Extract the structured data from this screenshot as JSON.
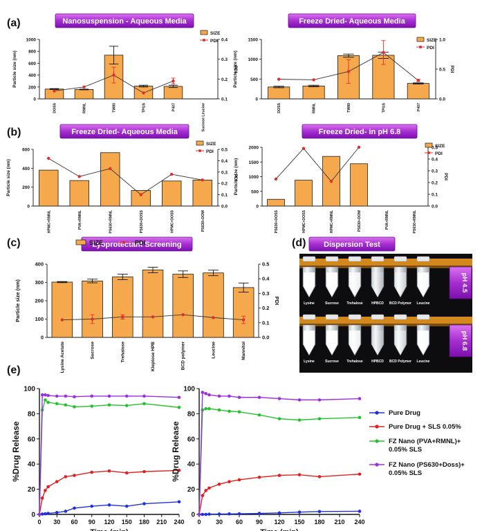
{
  "panel_labels": {
    "a": "(a)",
    "b": "(b)",
    "c": "(c)",
    "d": "(d)",
    "e": "(e)"
  },
  "legend": {
    "size": "SIZE",
    "pdi": "PDI"
  },
  "colors": {
    "bar": "#F6A94C",
    "bar_stroke": "#1a1a1a",
    "pdi": "#E32D2D",
    "banner_top": "#D35AE8",
    "banner_bottom": "#8D18B8",
    "pure_drug": "#1F2FE0",
    "pure_sls": "#E02020",
    "fz_pva": "#22C32A",
    "fz_ps630": "#9B2FE0"
  },
  "chart_data": [
    {
      "id": "a1",
      "type": "bar",
      "title": "Nanosuspension - Aqueous Media",
      "ylabel": "Particle size (nm)",
      "y2label": "PDI",
      "categories": [
        "DOSS",
        "RMNL",
        "TW80",
        "TPGS",
        "P407",
        "Sucrose Leucine"
      ],
      "size": [
        165,
        158,
        735,
        215,
        210,
        null
      ],
      "size_err": [
        8,
        6,
        150,
        15,
        20,
        null
      ],
      "pdi": [
        0.14,
        0.16,
        0.22,
        0.13,
        0.19,
        null
      ],
      "pdi_err": [
        0,
        0,
        0.04,
        0,
        0.015,
        null
      ],
      "ylim": [
        0,
        1000
      ],
      "yticks": [
        0,
        200,
        400,
        600,
        800,
        1000
      ],
      "y2lim": [
        0.1,
        0.4
      ],
      "y2ticks": [
        0.1,
        0.2,
        0.3,
        0.4
      ]
    },
    {
      "id": "a2",
      "type": "bar",
      "title": "Freeze Dried- Aqueous Media",
      "ylabel": "Particle size (nm)",
      "y2label": "PDI",
      "categories": [
        "DOSS",
        "RMNL",
        "TW80",
        "TPGS",
        "P407"
      ],
      "size": [
        300,
        325,
        1090,
        1100,
        390
      ],
      "size_err": [
        20,
        20,
        40,
        80,
        15
      ],
      "pdi": [
        0.33,
        0.32,
        0.46,
        0.78,
        0.31
      ],
      "pdi_err": [
        0,
        0,
        0.2,
        0.2,
        0.02
      ],
      "ylim": [
        0,
        1500
      ],
      "yticks": [
        0,
        500,
        1000,
        1500
      ],
      "y2lim": [
        0,
        1.0
      ],
      "y2ticks": [
        0.0,
        0.5,
        1.0
      ]
    },
    {
      "id": "b1",
      "type": "bar",
      "title": "Freeze Dried- Aqueous Media",
      "ylabel": "Particle size (nm)",
      "y2label": "PDI",
      "categories": [
        "HPMC+RMNL",
        "PVA+RMNL",
        "PS630+RMNL",
        "PS630+DOSS",
        "HPMC+DOSS",
        "PS630+DOW"
      ],
      "size": [
        380,
        270,
        565,
        165,
        265,
        275
      ],
      "pdi": [
        0.42,
        0.26,
        0.33,
        0.1,
        0.28,
        0.23
      ],
      "ylim": [
        0,
        600
      ],
      "yticks": [
        0,
        200,
        400,
        600
      ],
      "y2lim": [
        0,
        0.5
      ],
      "y2ticks": [
        0.0,
        0.1,
        0.2,
        0.3,
        0.4,
        0.5
      ]
    },
    {
      "id": "b2",
      "type": "bar",
      "title": "Freeze Dried- in pH 6.8",
      "ylabel": "Particle size (nm)",
      "y2label": "PDI",
      "categories": [
        "PS630+DOSS",
        "HPMC+DOSS",
        "HPMC+RMNL",
        "PS630+DOW",
        "PVA+RMNL",
        "PS630+RMNL"
      ],
      "size": [
        230,
        880,
        1690,
        1440,
        null,
        null
      ],
      "pdi": [
        0.23,
        0.49,
        0.21,
        0.5,
        null,
        null
      ],
      "ylim": [
        0,
        2000
      ],
      "yticks": [
        0,
        500,
        1000,
        1500,
        2000
      ],
      "y2lim": [
        0,
        0.5
      ],
      "y2ticks": [
        0.0,
        0.1,
        0.2,
        0.3,
        0.4,
        0.5
      ]
    },
    {
      "id": "c",
      "type": "bar",
      "title": "Lyoprotectant Screening",
      "ylabel": "Particle size (nm)",
      "y2label": "PDI",
      "categories": [
        "Lysine Acetate",
        "Sucrose",
        "Trehalose",
        "Kleptose HPB",
        "BCD polymer",
        "Leucine",
        "Mannitol"
      ],
      "size": [
        302,
        308,
        330,
        368,
        345,
        352,
        272
      ],
      "size_err": [
        3,
        10,
        15,
        15,
        18,
        15,
        25
      ],
      "pdi": [
        0.12,
        0.125,
        0.14,
        0.14,
        0.155,
        0.135,
        0.12
      ],
      "pdi_err": [
        0,
        0.03,
        0.015,
        0,
        0,
        0,
        0.025
      ],
      "ylim": [
        0,
        400
      ],
      "yticks": [
        0,
        100,
        200,
        300,
        400
      ],
      "y2lim": [
        0,
        0.5
      ],
      "y2ticks": [
        0.0,
        0.1,
        0.2,
        0.3,
        0.4,
        0.5
      ]
    },
    {
      "id": "e1",
      "type": "line",
      "xlabel": "Time (min)",
      "ylabel": "%Drug Release",
      "x": [
        0,
        5,
        10,
        15,
        30,
        45,
        60,
        90,
        120,
        150,
        180,
        240
      ],
      "xticks": [
        0,
        30,
        60,
        90,
        120,
        150,
        180,
        210,
        240
      ],
      "xlim": [
        0,
        240
      ],
      "ylim": [
        0,
        100
      ],
      "yticks": [
        0,
        20,
        40,
        60,
        80,
        100
      ],
      "series": [
        {
          "name": "Pure Drug",
          "values": [
            0,
            0.3,
            0.5,
            0.8,
            1.5,
            2.5,
            5,
            6.5,
            7.5,
            6.5,
            8.5,
            10
          ]
        },
        {
          "name": "Pure Drug + SLS 0.05%",
          "values": [
            0,
            13,
            19,
            22,
            26,
            30,
            31,
            33.5,
            34.5,
            33,
            34,
            35
          ]
        },
        {
          "name": "FZ Nano (PVA+RMNL)+ 0.05% SLS",
          "values": [
            0,
            83,
            91,
            89,
            88,
            87,
            85.5,
            86,
            87,
            86.5,
            88,
            85
          ]
        },
        {
          "name": "FZ Nano (PS630+Doss)+ 0.05% SLS",
          "values": [
            0,
            95,
            95,
            94.5,
            94,
            94,
            93.5,
            94,
            94,
            94,
            94,
            93
          ]
        }
      ]
    },
    {
      "id": "e2",
      "type": "line",
      "xlabel": "Time (min)",
      "ylabel": "%Drug Release",
      "x": [
        0,
        5,
        10,
        15,
        30,
        45,
        60,
        90,
        120,
        150,
        180,
        240
      ],
      "xticks": [
        0,
        30,
        60,
        90,
        120,
        150,
        180,
        210,
        240
      ],
      "xlim": [
        0,
        240
      ],
      "ylim": [
        0,
        100
      ],
      "yticks": [
        0,
        20,
        40,
        60,
        80,
        100
      ],
      "series": [
        {
          "name": "Pure Drug",
          "values": [
            0,
            0,
            0,
            0.2,
            0.3,
            0.4,
            0.5,
            0.8,
            1.2,
            1.8,
            2.3,
            2.5
          ]
        },
        {
          "name": "Pure Drug + SLS 0.05%",
          "values": [
            0,
            15,
            19,
            21,
            24,
            26,
            27.5,
            29.5,
            31,
            31.5,
            30,
            32
          ]
        },
        {
          "name": "FZ Nano (PVA+RMNL)+ 0.05% SLS",
          "values": [
            0,
            83,
            84,
            84,
            83,
            82,
            81.5,
            79,
            76,
            75,
            76,
            77
          ]
        },
        {
          "name": "FZ Nano (PS630+Doss)+ 0.05% SLS",
          "values": [
            0,
            97,
            96,
            95,
            94,
            94,
            93,
            93,
            92,
            91,
            91,
            92
          ]
        }
      ]
    }
  ],
  "dispersion": {
    "title": "Dispersion Test",
    "row1": {
      "label": "pH 4.5",
      "tubes": [
        "Lysine",
        "Sucrose",
        "Trehalose",
        "HPBCD",
        "BCD Polymer",
        "Leucine"
      ]
    },
    "row2": {
      "label": "pH 6.8",
      "tubes": [
        "Lysine",
        "Sucrose",
        "Trehalose",
        "HPBCD",
        "BCD Polymer",
        "Leucine"
      ]
    },
    "tube_opacity": [
      0.95,
      0.95,
      0.8,
      0.2,
      0.45,
      0.9
    ]
  }
}
